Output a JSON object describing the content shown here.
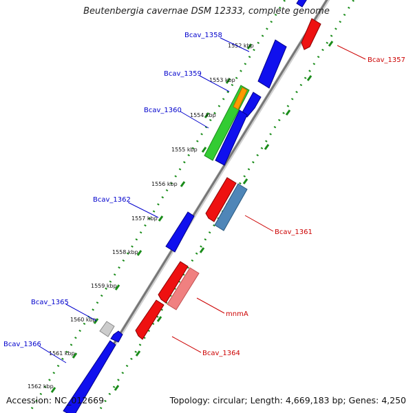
{
  "header": {
    "title": "Beutenbergia cavernae DSM 12333, complete genome"
  },
  "footer": {
    "accession": "Accession: NC_012669",
    "summary": "Topology: circular; Length: 4,669,183 bp; Genes: 4,250"
  },
  "colors": {
    "backbone": "#8a8a8a",
    "forward_gene": "#0000ee",
    "reverse_gene": "#ee0000",
    "rRNA_gene": "#33cc33",
    "tRNA_gene": "#ff9900",
    "other_reverse": "#4f86b8",
    "pseudo_reverse": "#f08080",
    "hypothetical": "#cccccc",
    "dotted_track": "#1a8c1a",
    "forward_label": "#0000cc",
    "reverse_label": "#cc0000"
  },
  "ticks": [
    {
      "label": "1552 kbp"
    },
    {
      "label": "1553 kbp"
    },
    {
      "label": "1554 kbp"
    },
    {
      "label": "1555 kbp"
    },
    {
      "label": "1556 kbp"
    },
    {
      "label": "1557 kbp"
    },
    {
      "label": "1558 kbp"
    },
    {
      "label": "1559 kbp"
    },
    {
      "label": "1560 kbp"
    },
    {
      "label": "1561 kbp"
    },
    {
      "label": "1562 kbp"
    }
  ],
  "gene_labels": {
    "forward": [
      "Bcav_1358",
      "Bcav_1359",
      "Bcav_1360",
      "Bcav_1362",
      "Bcav_1365",
      "Bcav_1366"
    ],
    "reverse": [
      "Bcav_1357",
      "Bcav_1361",
      "mnmA",
      "Bcav_1364"
    ]
  }
}
